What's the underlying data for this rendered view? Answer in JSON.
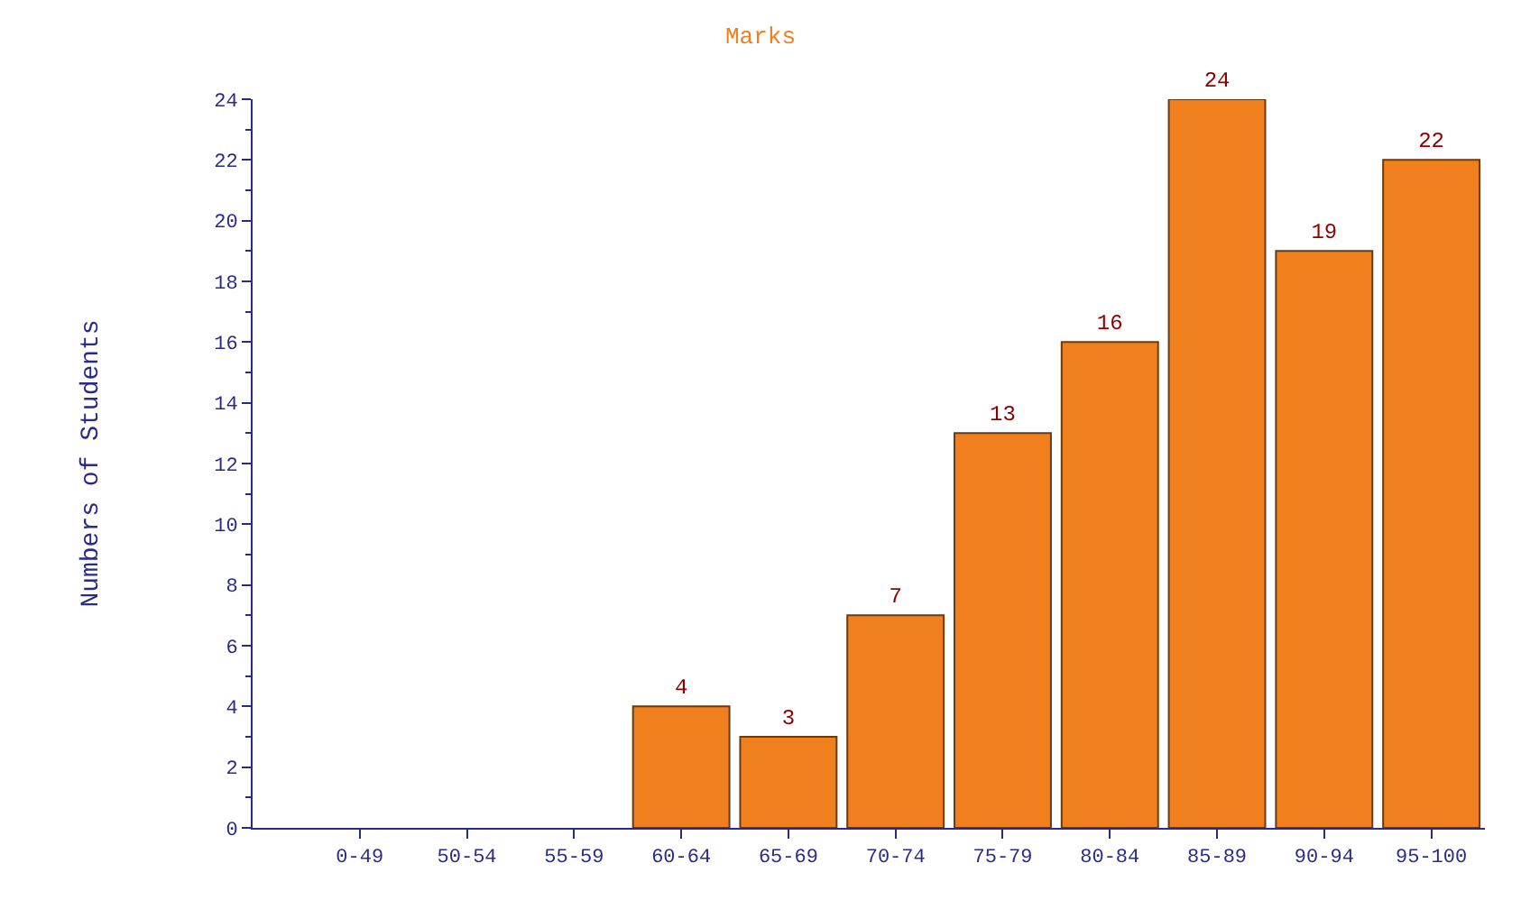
{
  "chart_data": {
    "type": "bar",
    "title": "Marks",
    "ylabel": "Numbers of Students",
    "categories": [
      "0-49",
      "50-54",
      "55-59",
      "60-64",
      "65-69",
      "70-74",
      "75-79",
      "80-84",
      "85-89",
      "90-94",
      "95-100"
    ],
    "values": [
      0,
      0,
      0,
      4,
      3,
      7,
      13,
      16,
      24,
      19,
      22
    ],
    "value_labels": [
      null,
      null,
      null,
      "4",
      "3",
      "7",
      "13",
      "16",
      "24",
      "19",
      "22"
    ],
    "color": "#f07f1e",
    "ylim": [
      0,
      24
    ],
    "yticks": [
      0,
      2,
      4,
      6,
      8,
      10,
      12,
      14,
      16,
      18,
      20,
      22,
      24
    ]
  }
}
